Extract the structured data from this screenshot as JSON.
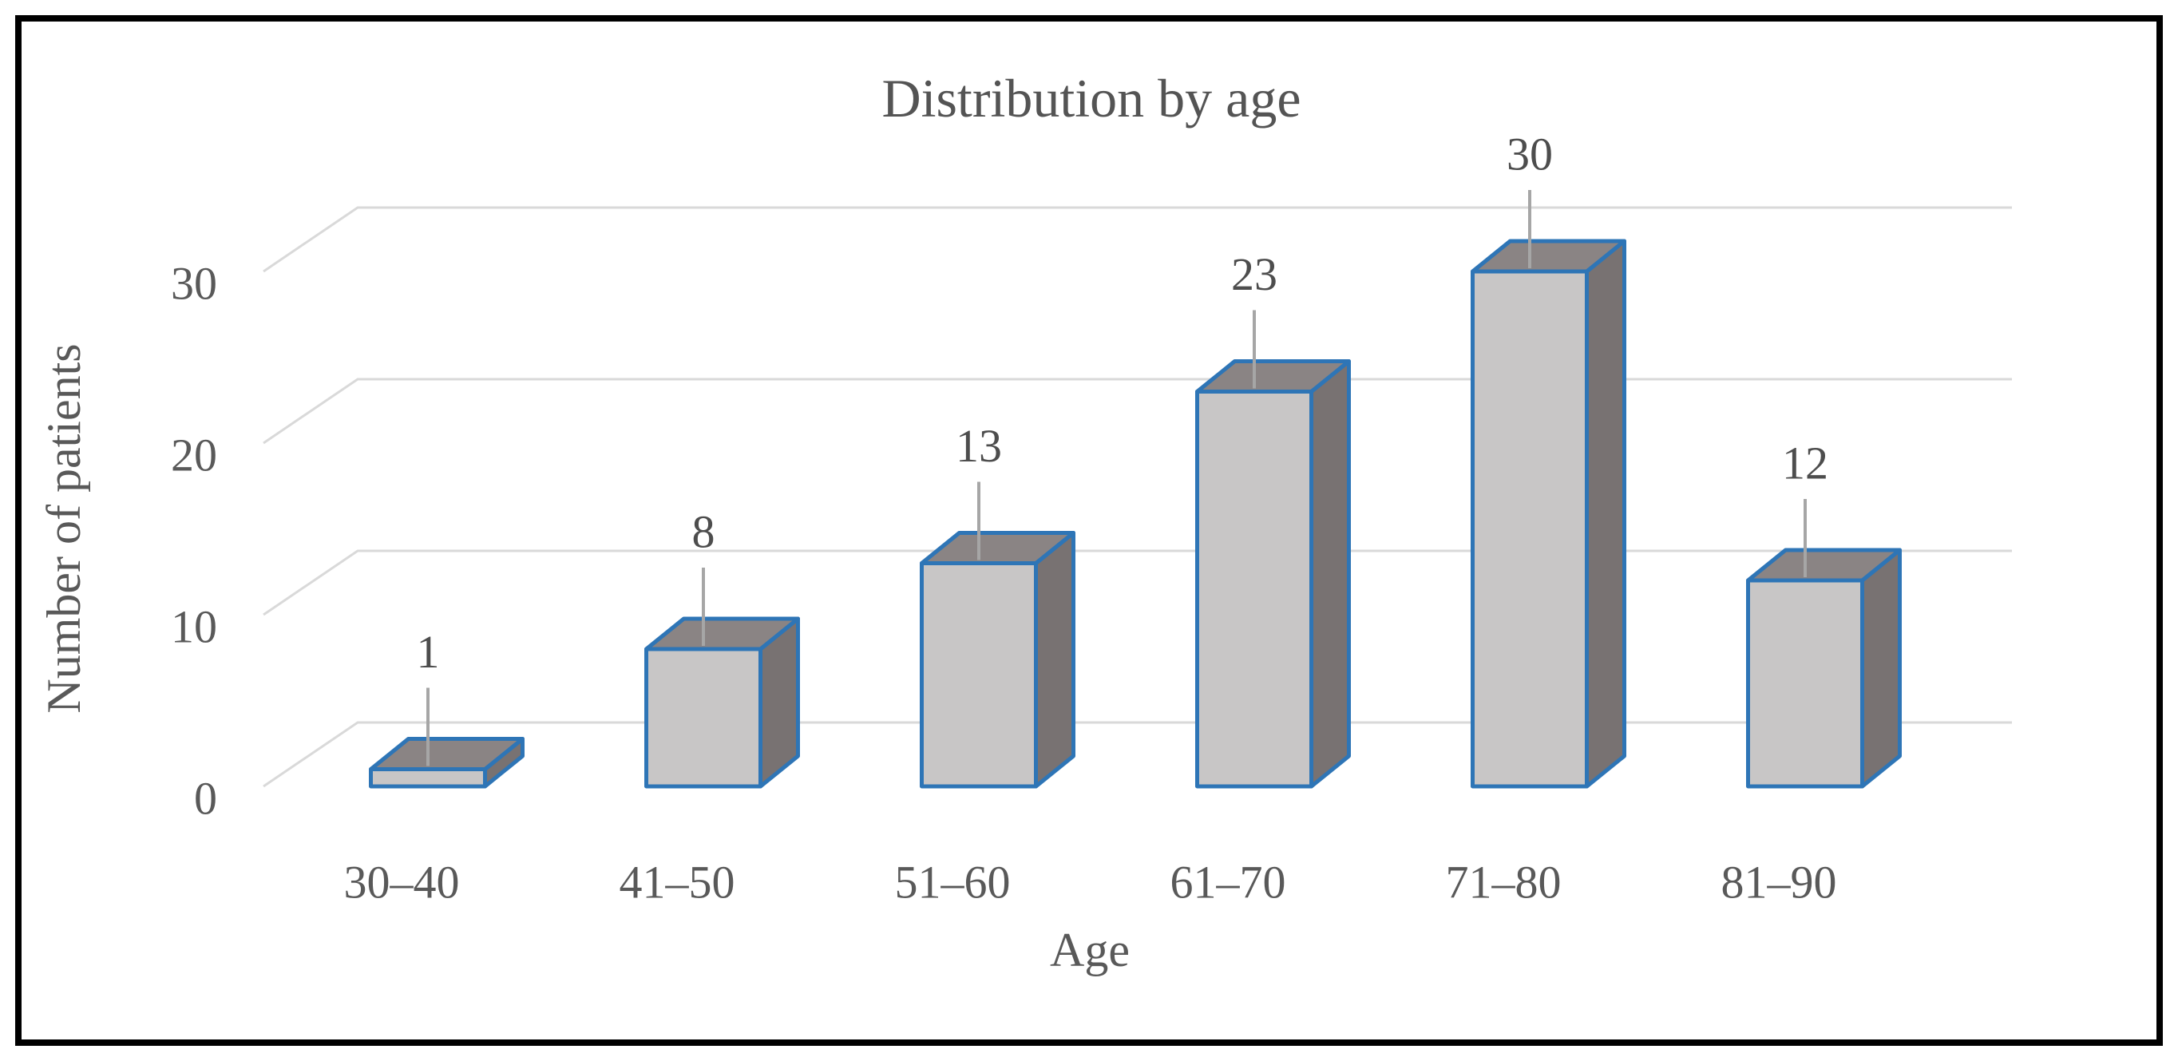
{
  "figure": {
    "title": "Distribution by age",
    "x_axis_title": "Age",
    "y_axis_title": "Number of patients"
  },
  "chart_data": {
    "type": "bar",
    "style": "3d-column",
    "title": "Distribution by age",
    "xlabel": "Age",
    "ylabel": "Number of patients",
    "categories": [
      "30–40",
      "41–50",
      "51–60",
      "61–70",
      "71–80",
      "81–90"
    ],
    "values": [
      1,
      8,
      13,
      23,
      30,
      12
    ],
    "data_labels": [
      "1",
      "8",
      "13",
      "23",
      "30",
      "12"
    ],
    "y_ticks": [
      0,
      10,
      20,
      30
    ],
    "ylim": [
      0,
      35
    ],
    "grid": true,
    "legend": false,
    "colors": {
      "bar_front": "#C8C6C6",
      "bar_top": "#8A8484",
      "bar_side": "#787272",
      "bar_outline": "#2E75B6",
      "gridline": "#D9D9D9",
      "leader_line": "#A6A6A6",
      "text": "#595959",
      "title_text": "#545454",
      "frame": "#000000",
      "background": "#FFFFFF"
    }
  }
}
